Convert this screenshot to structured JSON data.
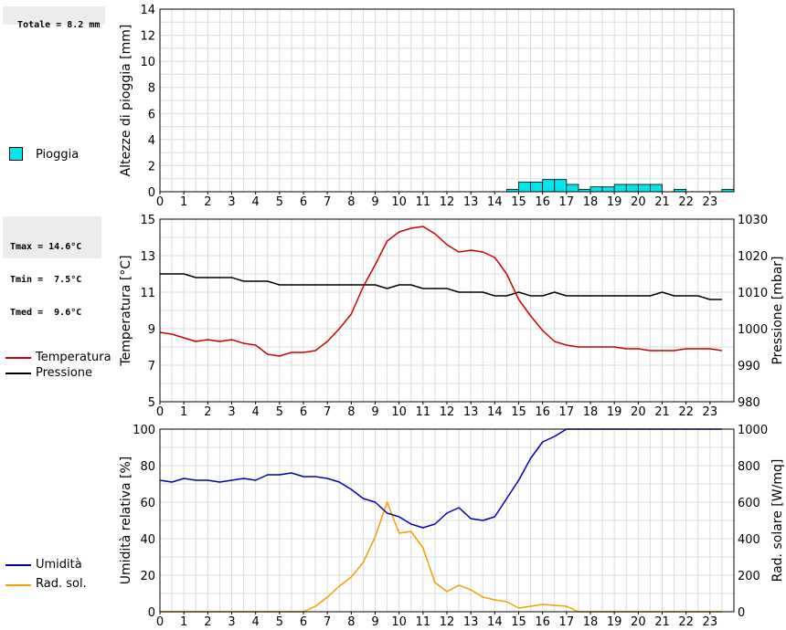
{
  "stats": {
    "rain_total": "Totale = 8.2 mm",
    "tmax": "Tmax = 14.6°C",
    "tmin": "Tmin =  7.5°C",
    "tmed": "Tmed =  9.6°C"
  },
  "legend": {
    "rain": "Pioggia",
    "temperature": "Temperatura",
    "pressure": "Pressione",
    "humidity": "Umidità",
    "radiation": "Rad. sol."
  },
  "colors": {
    "rain": "#00e5ee",
    "temperature": "#cc0000",
    "pressure": "#000000",
    "humidity": "#0000b0",
    "radiation": "#f0a000"
  },
  "chart_data": [
    {
      "type": "bar",
      "ylabel": "Altezze di pioggia [mm]",
      "ylim": [
        0,
        15
      ],
      "xlim": [
        0,
        24
      ],
      "x_ticks": [
        "0",
        "1",
        "2",
        "3",
        "4",
        "5",
        "6",
        "7",
        "8",
        "9",
        "10",
        "11",
        "12",
        "13",
        "14",
        "15",
        "16",
        "17",
        "18",
        "19",
        "20",
        "21",
        "22",
        "23"
      ],
      "y_ticks": [
        "0",
        "2",
        "4",
        "6",
        "8",
        "10",
        "12",
        "14"
      ],
      "series": [
        {
          "name": "Pioggia",
          "x": [
            14.5,
            15,
            15.5,
            16,
            16.5,
            17,
            17.5,
            18,
            18.5,
            19,
            19.5,
            20,
            20.5,
            21.5,
            23.5
          ],
          "values": [
            0.2,
            0.8,
            0.8,
            1.0,
            1.0,
            0.6,
            0.2,
            0.4,
            0.4,
            0.6,
            0.6,
            0.6,
            0.6,
            0.2,
            0.2
          ]
        }
      ]
    },
    {
      "type": "line",
      "ylabel": "Temperatura [°C]",
      "y2label": "Pressione [mbar]",
      "ylim": [
        5,
        15
      ],
      "y2lim": [
        980,
        1030
      ],
      "xlim": [
        0,
        24
      ],
      "x_ticks": [
        "0",
        "1",
        "2",
        "3",
        "4",
        "5",
        "6",
        "7",
        "8",
        "9",
        "10",
        "11",
        "12",
        "13",
        "14",
        "15",
        "16",
        "17",
        "18",
        "19",
        "20",
        "21",
        "22",
        "23"
      ],
      "y_ticks": [
        "5",
        "7",
        "9",
        "11",
        "13",
        "15"
      ],
      "y2_ticks": [
        "980",
        "990",
        "1000",
        "1010",
        "1020",
        "1030"
      ],
      "series": [
        {
          "name": "Temperatura",
          "axis": "left",
          "x": [
            0,
            0.5,
            1,
            1.5,
            2,
            2.5,
            3,
            3.5,
            4,
            4.5,
            5,
            5.5,
            6,
            6.5,
            7,
            7.5,
            8,
            8.5,
            9,
            9.5,
            10,
            10.5,
            11,
            11.5,
            12,
            12.5,
            13,
            13.5,
            14,
            14.5,
            15,
            15.5,
            16,
            16.5,
            17,
            17.5,
            18,
            18.5,
            19,
            19.5,
            20,
            20.5,
            21,
            21.5,
            22,
            22.5,
            23,
            23.5
          ],
          "values": [
            8.8,
            8.7,
            8.5,
            8.3,
            8.4,
            8.3,
            8.4,
            8.2,
            8.1,
            7.6,
            7.5,
            7.7,
            7.7,
            7.8,
            8.3,
            9.0,
            9.8,
            11.3,
            12.5,
            13.8,
            14.3,
            14.5,
            14.6,
            14.2,
            13.6,
            13.2,
            13.3,
            13.2,
            12.9,
            12.0,
            10.6,
            9.7,
            8.9,
            8.3,
            8.1,
            8.0,
            8.0,
            8.0,
            8.0,
            7.9,
            7.9,
            7.8,
            7.8,
            7.8,
            7.9,
            7.9,
            7.9,
            7.8
          ]
        },
        {
          "name": "Pressione",
          "axis": "right",
          "x": [
            0,
            1,
            1.5,
            3,
            3.5,
            4,
            4.5,
            5,
            8.5,
            9,
            9.5,
            10,
            10.5,
            11,
            12,
            12.5,
            13.5,
            14,
            14.5,
            15,
            15.5,
            16,
            16.5,
            17,
            20.5,
            21,
            21.5,
            22.5,
            23,
            23.5
          ],
          "values": [
            1015,
            1015,
            1014,
            1014,
            1013,
            1013,
            1013,
            1012,
            1012,
            1012,
            1011,
            1012,
            1012,
            1011,
            1011,
            1010,
            1010,
            1009,
            1009,
            1010,
            1009,
            1009,
            1010,
            1009,
            1009,
            1010,
            1009,
            1009,
            1008,
            1008
          ]
        }
      ]
    },
    {
      "type": "line",
      "ylabel": "Umidità relativa [%]",
      "y2label": "Rad. solare [W/mq]",
      "ylim": [
        0,
        100
      ],
      "y2lim": [
        0,
        1000
      ],
      "xlim": [
        0,
        24
      ],
      "x_ticks": [
        "0",
        "1",
        "2",
        "3",
        "4",
        "5",
        "6",
        "7",
        "8",
        "9",
        "10",
        "11",
        "12",
        "13",
        "14",
        "15",
        "16",
        "17",
        "18",
        "19",
        "20",
        "21",
        "22",
        "23"
      ],
      "y_ticks": [
        "0",
        "20",
        "40",
        "60",
        "80",
        "100"
      ],
      "y2_ticks": [
        "0",
        "200",
        "400",
        "600",
        "800",
        "1000"
      ],
      "series": [
        {
          "name": "Umidità",
          "axis": "left",
          "x": [
            0,
            0.5,
            1,
            1.5,
            2,
            2.5,
            3,
            3.5,
            4,
            4.5,
            5,
            5.5,
            6,
            6.5,
            7,
            7.5,
            8,
            8.5,
            9,
            9.5,
            10,
            10.5,
            11,
            11.5,
            12,
            12.5,
            13,
            13.5,
            14,
            14.5,
            15,
            15.5,
            16,
            16.5,
            17,
            17.5,
            18,
            19,
            20,
            21,
            22,
            23,
            23.5
          ],
          "values": [
            72,
            71,
            73,
            72,
            72,
            71,
            72,
            73,
            72,
            75,
            75,
            76,
            74,
            74,
            73,
            71,
            67,
            62,
            60,
            54,
            52,
            48,
            46,
            48,
            54,
            57,
            51,
            50,
            52,
            62,
            72,
            84,
            93,
            96,
            100,
            100,
            100,
            100,
            100,
            100,
            100,
            100,
            100
          ]
        },
        {
          "name": "Rad. sol.",
          "axis": "right",
          "x": [
            0,
            1,
            2,
            3,
            4,
            5,
            5.5,
            6,
            6.5,
            7,
            7.5,
            8,
            8.5,
            9,
            9.5,
            10,
            10.5,
            11,
            11.5,
            12,
            12.5,
            13,
            13.5,
            14,
            14.5,
            15,
            15.5,
            16,
            16.5,
            17,
            17.5,
            18,
            19,
            20,
            21,
            22,
            23,
            23.5
          ],
          "values": [
            0,
            0,
            0,
            0,
            0,
            0,
            0,
            0,
            30,
            80,
            140,
            190,
            270,
            410,
            600,
            430,
            440,
            350,
            160,
            110,
            145,
            120,
            80,
            65,
            55,
            20,
            30,
            40,
            35,
            30,
            0,
            0,
            0,
            0,
            0,
            0,
            0,
            0
          ]
        }
      ]
    }
  ]
}
